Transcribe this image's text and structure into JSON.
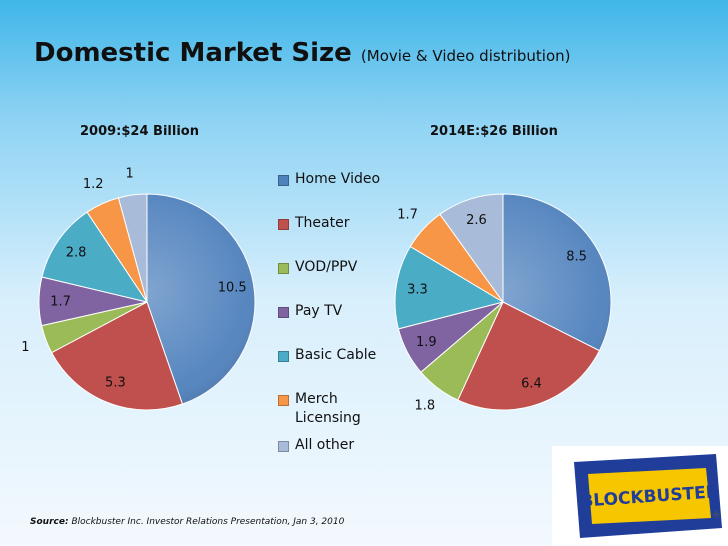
{
  "header": {
    "title": "Domestic Market Size",
    "subtitle": "(Movie & Video distribution)"
  },
  "chart_data": [
    {
      "type": "pie",
      "title": "2009:$24 Billion",
      "categories": [
        "Home Video",
        "Theater",
        "VOD/PPV",
        "Pay TV",
        "Basic Cable",
        "Merch Licensing",
        "All other"
      ],
      "values": [
        10.5,
        5.3,
        1,
        1.7,
        2.8,
        1.2,
        1
      ],
      "labels": [
        "10.5",
        "5.3",
        "1",
        "1.7",
        "2.8",
        "1.2",
        "1"
      ]
    },
    {
      "type": "pie",
      "title": "2014E:$26 Billion",
      "categories": [
        "Home Video",
        "Theater",
        "VOD/PPV",
        "Pay TV",
        "Basic Cable",
        "Merch Licensing",
        "All other"
      ],
      "values": [
        8.5,
        6.4,
        1.8,
        1.9,
        3.3,
        1.7,
        2.6
      ],
      "labels": [
        "8.5",
        "6.4",
        "1.8",
        "1.9",
        "3.3",
        "1.7",
        "2.6"
      ]
    }
  ],
  "legend": {
    "items": [
      {
        "label": "Home Video",
        "color": "#4f81bd"
      },
      {
        "label": "Theater",
        "color": "#c0504d"
      },
      {
        "label": "VOD/PPV",
        "color": "#9bbb59"
      },
      {
        "label": "Pay TV",
        "color": "#8064a2"
      },
      {
        "label": "Basic Cable",
        "color": "#4bacc6"
      },
      {
        "label": "Merch Licensing",
        "color": "#f79646"
      },
      {
        "label": "All other",
        "color": "#a8bbd8"
      }
    ]
  },
  "footer": {
    "source_label": "Source:",
    "source_text": "Blockbuster Inc. Investor Relations Presentation, Jan 3, 2010"
  },
  "logo": {
    "text": "BLOCKBUSTER",
    "registered": "®",
    "colors": {
      "blue": "#1f3d99",
      "yellow": "#f6c700"
    }
  }
}
